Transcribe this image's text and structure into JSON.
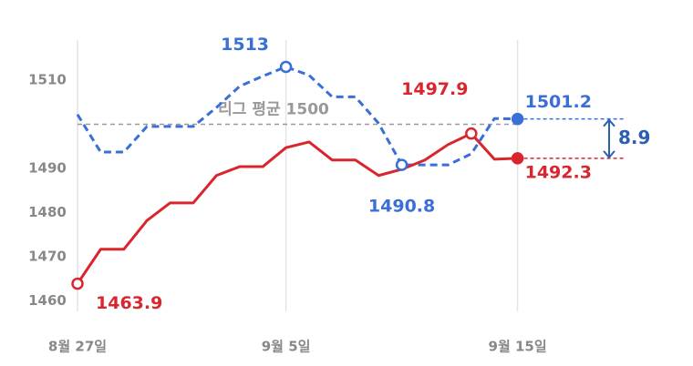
{
  "chart_data": {
    "type": "line",
    "categories": [
      "8월 27일",
      null,
      null,
      null,
      null,
      null,
      null,
      null,
      null,
      "9월 5일",
      null,
      null,
      null,
      null,
      null,
      null,
      null,
      null,
      null,
      "9월 15일"
    ],
    "series": [
      {
        "color": "#3a6fd8",
        "dash": true,
        "values": [
          1502.2,
          1493.7,
          1493.7,
          1499.5,
          1499.5,
          1499.5,
          1503.8,
          1508.6,
          1510.9,
          1513,
          1511.1,
          1506.2,
          1506.2,
          1500.2,
          1490.8,
          1490.8,
          1490.8,
          1493.3,
          1501.3,
          1501.2
        ]
      },
      {
        "color": "#d9262e",
        "dash": false,
        "values": [
          1463.9,
          1471.7,
          1471.7,
          1478.2,
          1482.2,
          1482.2,
          1488.4,
          1490.4,
          1490.4,
          1494.7,
          1496,
          1491.9,
          1491.9,
          1488.4,
          1489.8,
          1491.9,
          1495.4,
          1497.9,
          1492.1,
          1492.3
        ]
      }
    ],
    "ylim": [
      1458,
      1518
    ],
    "yticks": [
      1460,
      1470,
      1480,
      1490,
      1510
    ],
    "reference": {
      "value": 1500,
      "label": "리그 평균 1500"
    },
    "gap": 8.9
  }
}
